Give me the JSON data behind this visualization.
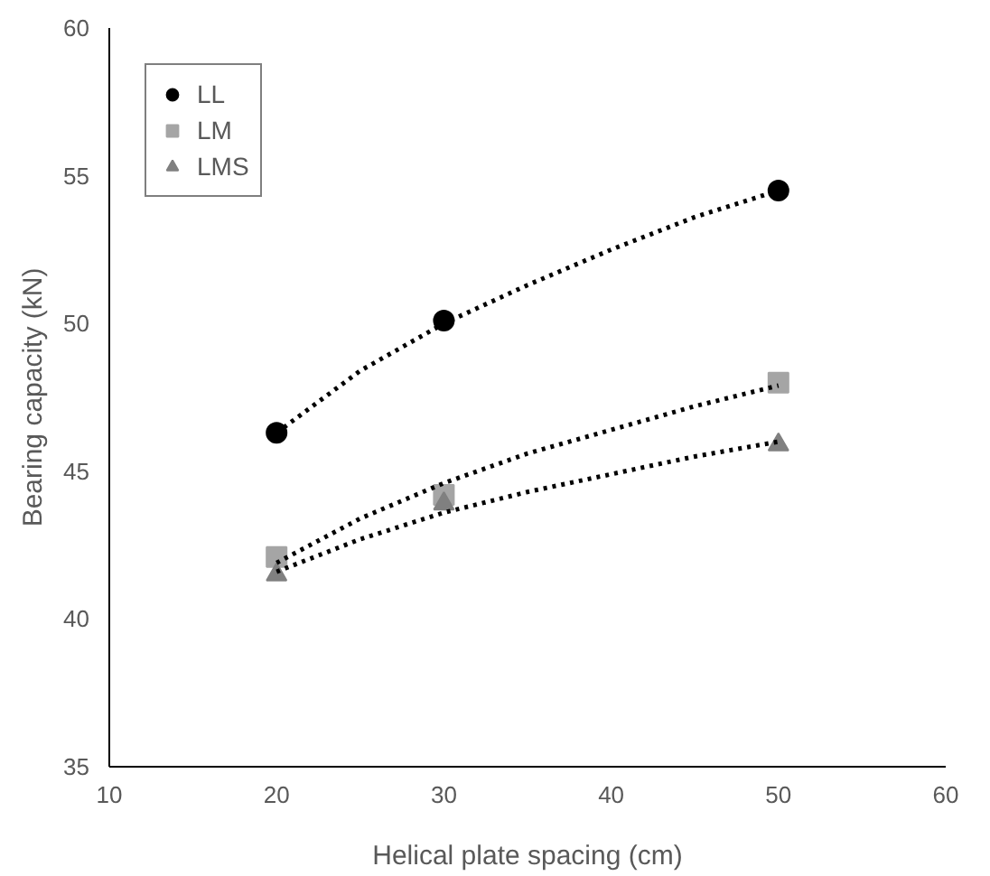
{
  "chart_data": {
    "type": "scatter",
    "xlabel": "Helical plate spacing (cm)",
    "ylabel": "Bearing capacity (kN)",
    "xlim": [
      10,
      60
    ],
    "xticks": [
      10,
      20,
      30,
      40,
      50,
      60
    ],
    "ylim": [
      35,
      60
    ],
    "yticks": [
      35,
      40,
      45,
      50,
      55,
      60
    ],
    "grid": false,
    "legend": "top left",
    "series": [
      {
        "name": "LL",
        "type": "scatter",
        "marker": "circle",
        "color": "#000000",
        "x": [
          20,
          30,
          50
        ],
        "values": [
          46.3,
          50.1,
          54.5
        ]
      },
      {
        "name": "LM",
        "type": "scatter",
        "marker": "square",
        "color": "#a5a5a5",
        "x": [
          20,
          30,
          50
        ],
        "values": [
          42.1,
          44.2,
          48.0
        ]
      },
      {
        "name": "LMS",
        "type": "scatter",
        "marker": "triangle",
        "color": "#808080",
        "x": [
          20,
          30,
          50
        ],
        "values": [
          41.5,
          43.9,
          45.9
        ]
      },
      {
        "type": "line",
        "line_style": "dotted",
        "marker": "none",
        "color": "#000000",
        "x": [
          20,
          25,
          30,
          35,
          40,
          45,
          50
        ],
        "values": [
          46.3,
          48.4,
          50.0,
          51.3,
          52.5,
          53.6,
          54.5
        ]
      },
      {
        "type": "line",
        "line_style": "dotted",
        "marker": "none",
        "color": "#000000",
        "x": [
          20,
          25,
          30,
          35,
          40,
          45,
          50
        ],
        "values": [
          41.9,
          43.4,
          44.6,
          45.6,
          46.4,
          47.2,
          47.9
        ]
      },
      {
        "type": "line",
        "line_style": "dotted",
        "marker": "none",
        "color": "#000000",
        "x": [
          20,
          25,
          30,
          35,
          40,
          45,
          50
        ],
        "values": [
          41.6,
          42.7,
          43.6,
          44.3,
          44.9,
          45.5,
          46.0
        ]
      }
    ]
  }
}
